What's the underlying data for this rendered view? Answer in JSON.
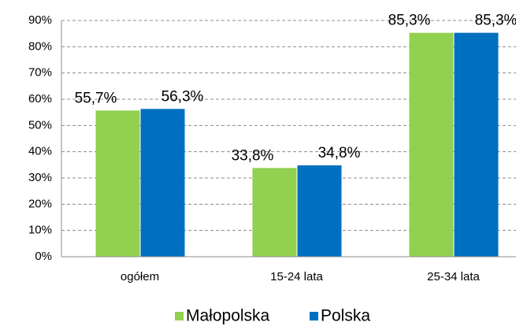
{
  "chart_data": {
    "type": "bar",
    "categories": [
      "ogółem",
      "15-24 lata",
      "25-34 lata"
    ],
    "series": [
      {
        "name": "Małopolska",
        "color": "#92d050",
        "values": [
          55.7,
          33.8,
          85.3
        ],
        "value_labels": [
          "55,7%",
          "33,8%",
          "85,3%"
        ]
      },
      {
        "name": "Polska",
        "color": "#0070c0",
        "values": [
          56.3,
          34.8,
          85.3
        ],
        "value_labels": [
          "56,3%",
          "34,8%",
          "85,3%"
        ]
      }
    ],
    "ylim": [
      0,
      90
    ],
    "yticks": [
      {
        "value": 0,
        "label": "0%"
      },
      {
        "value": 10,
        "label": "10%"
      },
      {
        "value": 20,
        "label": "20%"
      },
      {
        "value": 30,
        "label": "30%"
      },
      {
        "value": 40,
        "label": "40%"
      },
      {
        "value": 50,
        "label": "50%"
      },
      {
        "value": 60,
        "label": "60%"
      },
      {
        "value": 70,
        "label": "70%"
      },
      {
        "value": 80,
        "label": "80%"
      },
      {
        "value": 90,
        "label": "90%"
      }
    ],
    "grid": true,
    "legend": "bottom"
  }
}
